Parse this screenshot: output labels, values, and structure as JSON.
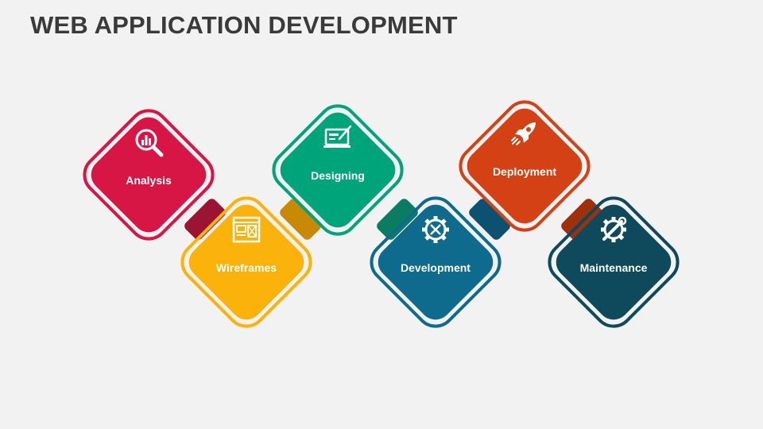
{
  "title": "WEB APPLICATION DEVELOPMENT",
  "steps": [
    {
      "label": "Analysis",
      "icon": "magnifier-chart-icon",
      "color": "#d81645"
    },
    {
      "label": "Wireframes",
      "icon": "wireframe-layout-icon",
      "color": "#fbb20a"
    },
    {
      "label": "Designing",
      "icon": "laptop-pen-icon",
      "color": "#00a47a"
    },
    {
      "label": "Development",
      "icon": "gear-tools-icon",
      "color": "#0e6b8d"
    },
    {
      "label": "Deployment",
      "icon": "rocket-icon",
      "color": "#d34114"
    },
    {
      "label": "Maintenance",
      "icon": "gear-wrench-icon",
      "color": "#0f4a5c"
    }
  ]
}
